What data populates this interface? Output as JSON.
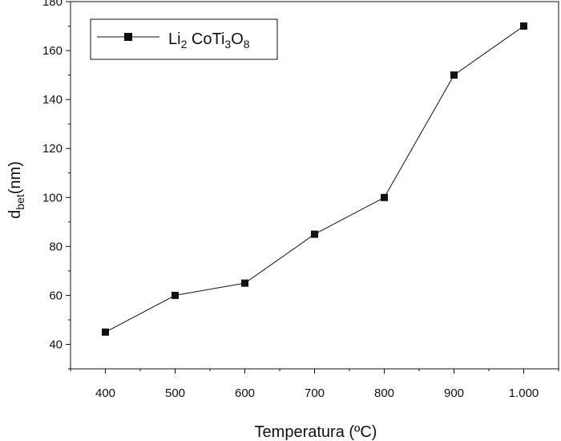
{
  "chart_data": {
    "type": "line",
    "x": [
      400,
      500,
      600,
      700,
      800,
      900,
      1000
    ],
    "series": [
      {
        "name_parts": {
          "li": "Li",
          "li_sub": "2",
          "co": " CoTi",
          "ti_sub": "3",
          "o": "O",
          "o_sub": "8"
        },
        "values": [
          45,
          60,
          65,
          85,
          100,
          150,
          170
        ]
      }
    ],
    "x_ticks": [
      400,
      500,
      600,
      700,
      800,
      900,
      1000
    ],
    "x_tick_labels": [
      "400",
      "500",
      "600",
      "700",
      "800",
      "900",
      "1.000"
    ],
    "y_ticks": [
      40,
      60,
      80,
      100,
      120,
      140,
      160,
      180
    ],
    "xlabel": "Temperatura (ºC)",
    "ylabel_parts": {
      "main": "d",
      "sub": "bet",
      "rest": "(nm)"
    },
    "xlim": [
      350,
      1050
    ],
    "ylim": [
      30,
      180
    ],
    "grid": false,
    "legend_position": "top-left",
    "marker": "square",
    "line_color": "#111111"
  }
}
